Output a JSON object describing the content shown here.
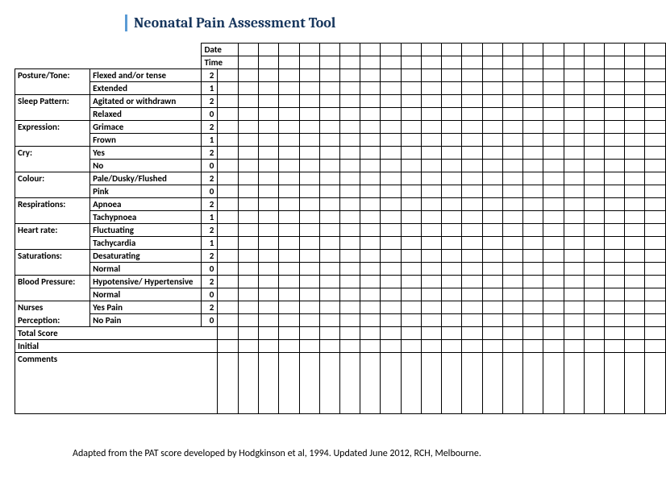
{
  "title": "Neonatal Pain Assessment Tool",
  "headers": {
    "date": "Date",
    "time": "Time"
  },
  "columns_count": 22,
  "criteria": [
    {
      "category": "Posture/Tone:",
      "rows": [
        {
          "desc": "Flexed and/or tense",
          "score": "2"
        },
        {
          "desc": "Extended",
          "score": "1"
        }
      ]
    },
    {
      "category": "Sleep Pattern:",
      "rows": [
        {
          "desc": "Agitated or withdrawn",
          "score": "2"
        },
        {
          "desc": "Relaxed",
          "score": "0"
        }
      ]
    },
    {
      "category": "Expression:",
      "rows": [
        {
          "desc": "Grimace",
          "score": "2"
        },
        {
          "desc": "Frown",
          "score": "1"
        }
      ]
    },
    {
      "category": "Cry:",
      "rows": [
        {
          "desc": "Yes",
          "score": "2"
        },
        {
          "desc": "No",
          "score": "0"
        }
      ]
    },
    {
      "category": "Colour:",
      "rows": [
        {
          "desc": "Pale/Dusky/Flushed",
          "score": "2"
        },
        {
          "desc": "Pink",
          "score": "0"
        }
      ]
    },
    {
      "category": "Respirations:",
      "rows": [
        {
          "desc": "Apnoea",
          "score": "2"
        },
        {
          "desc": "Tachypnoea",
          "score": "1"
        }
      ]
    },
    {
      "category": "Heart rate:",
      "rows": [
        {
          "desc": "Fluctuating",
          "score": "2"
        },
        {
          "desc": "Tachycardia",
          "score": "1"
        }
      ]
    },
    {
      "category": "Saturations:",
      "rows": [
        {
          "desc": "Desaturating",
          "score": "2"
        },
        {
          "desc": "Normal",
          "score": "0"
        }
      ]
    },
    {
      "category": "Blood Pressure:",
      "rows": [
        {
          "desc": "Hypotensive/ Hypertensive",
          "score": "2"
        },
        {
          "desc": "Normal",
          "score": "0"
        }
      ]
    },
    {
      "category": "Nurses",
      "category2": "Perception:",
      "rows": [
        {
          "desc": "Yes Pain",
          "score": "2"
        },
        {
          "desc": "No Pain",
          "score": "0"
        }
      ]
    }
  ],
  "rows_bottom": {
    "total": "Total Score",
    "initial": "Initial",
    "comments": "Comments"
  },
  "footer": "Adapted from the PAT score developed by Hodgkinson et al, 1994.  Updated June 2012, RCH, Melbourne.",
  "colors": {
    "title": "#17365d",
    "title_border": "#5b9bd5",
    "grid": "#000000",
    "bg": "#ffffff"
  }
}
